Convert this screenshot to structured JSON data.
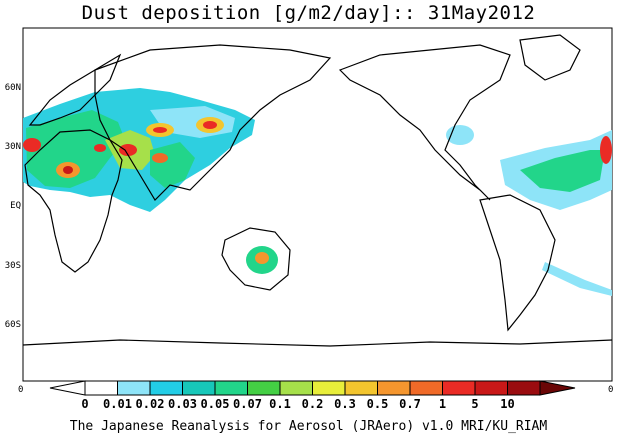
{
  "title": "Dust deposition [g/m2/day]:: 31May2012",
  "lat_labels": [
    "60N",
    "30N",
    "EQ",
    "30S",
    "60S"
  ],
  "edge_labels": {
    "left": "0",
    "right": "0"
  },
  "colorbar": {
    "ticks": [
      "0",
      "0.01",
      "0.02",
      "0.03",
      "0.05",
      "0.07",
      "0.1",
      "0.2",
      "0.3",
      "0.5",
      "0.7",
      "1",
      "5",
      "10"
    ],
    "colors": [
      "#ffffff",
      "#ffffff",
      "#8ee4f8",
      "#22cde6",
      "#17c7b9",
      "#22d58a",
      "#44cf44",
      "#a6e04a",
      "#e8ee3a",
      "#f3c52e",
      "#f5962e",
      "#f06a28",
      "#ea2b25",
      "#c91818",
      "#9a0c10",
      "#6a0606"
    ]
  },
  "credit": "The Japanese Reanalysis for Aerosol (JRAero) v1.0 MRI/KU_RIAM"
}
